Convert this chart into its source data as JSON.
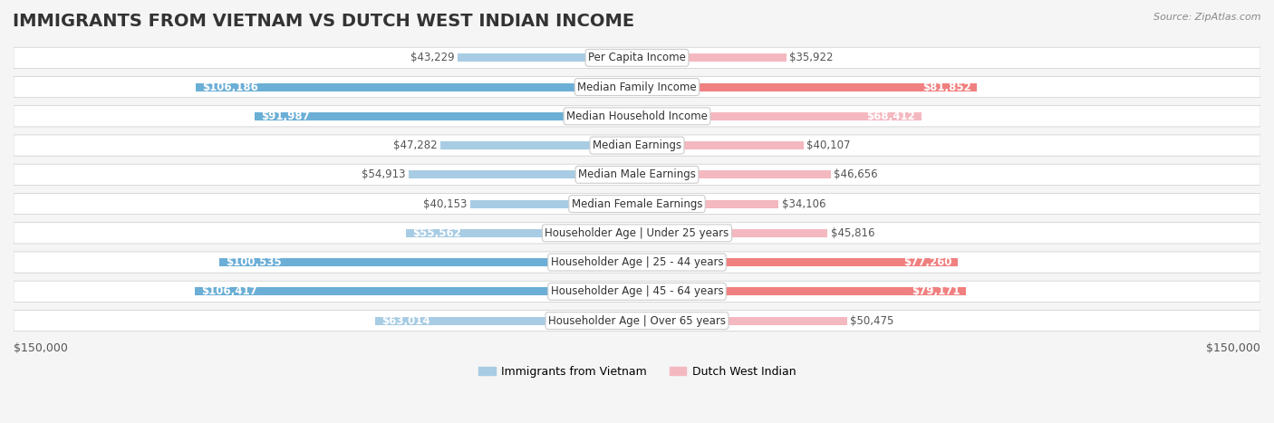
{
  "title": "IMMIGRANTS FROM VIETNAM VS DUTCH WEST INDIAN INCOME",
  "source": "Source: ZipAtlas.com",
  "categories": [
    "Per Capita Income",
    "Median Family Income",
    "Median Household Income",
    "Median Earnings",
    "Median Male Earnings",
    "Median Female Earnings",
    "Householder Age | Under 25 years",
    "Householder Age | 25 - 44 years",
    "Householder Age | 45 - 64 years",
    "Householder Age | Over 65 years"
  ],
  "vietnam_values": [
    43229,
    106186,
    91987,
    47282,
    54913,
    40153,
    55562,
    100535,
    106417,
    63014
  ],
  "dutch_values": [
    35922,
    81852,
    68412,
    40107,
    46656,
    34106,
    45816,
    77260,
    79171,
    50475
  ],
  "vietnam_labels": [
    "$43,229",
    "$106,186",
    "$91,987",
    "$47,282",
    "$54,913",
    "$40,153",
    "$55,562",
    "$100,535",
    "$106,417",
    "$63,014"
  ],
  "dutch_labels": [
    "$35,922",
    "$81,852",
    "$68,412",
    "$40,107",
    "$46,656",
    "$34,106",
    "$45,816",
    "$77,260",
    "$79,171",
    "$50,475"
  ],
  "vietnam_color_dark": "#6baed6",
  "vietnam_color_light": "#a8cce3",
  "dutch_color_dark": "#f08080",
  "dutch_color_light": "#f4b8c0",
  "max_val": 150000,
  "legend_vietnam": "Immigrants from Vietnam",
  "legend_dutch": "Dutch West Indian",
  "x_label_left": "$150,000",
  "x_label_right": "$150,000",
  "background_color": "#f5f5f5",
  "row_bg_color": "#ffffff",
  "title_fontsize": 14,
  "label_fontsize": 8.5,
  "category_fontsize": 8.5
}
